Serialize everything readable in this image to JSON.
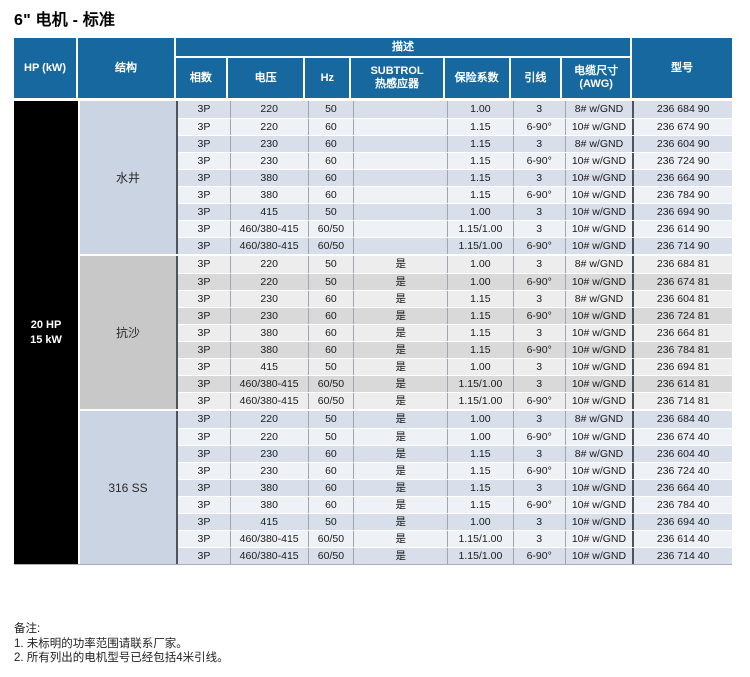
{
  "title": "6\" 电机 - 标准",
  "table": {
    "header": {
      "hp": "HP (kW)",
      "structure": "结构",
      "description": "描述",
      "sub": [
        "相数",
        "电压",
        "Hz",
        "SUBTROL\n热感应器",
        "保险系数",
        "引线",
        "电缆尺寸\n(AWG)"
      ],
      "model": "型号"
    },
    "hp_cell": {
      "line1": "20 HP",
      "line2": "15 kW"
    },
    "groups": [
      {
        "structure": "水井",
        "theme": "blue",
        "rows": [
          [
            "3P",
            "220",
            "50",
            "",
            "1.00",
            "3",
            "8# w/GND",
            "236 684 90"
          ],
          [
            "3P",
            "220",
            "60",
            "",
            "1.15",
            "6-90°",
            "10# w/GND",
            "236 674 90"
          ],
          [
            "3P",
            "230",
            "60",
            "",
            "1.15",
            "3",
            "8# w/GND",
            "236 604 90"
          ],
          [
            "3P",
            "230",
            "60",
            "",
            "1.15",
            "6-90°",
            "10# w/GND",
            "236 724 90"
          ],
          [
            "3P",
            "380",
            "60",
            "",
            "1.15",
            "3",
            "10# w/GND",
            "236 664 90"
          ],
          [
            "3P",
            "380",
            "60",
            "",
            "1.15",
            "6-90°",
            "10# w/GND",
            "236 784 90"
          ],
          [
            "3P",
            "415",
            "50",
            "",
            "1.00",
            "3",
            "10# w/GND",
            "236 694 90"
          ],
          [
            "3P",
            "460/380-415",
            "60/50",
            "",
            "1.15/1.00",
            "3",
            "10# w/GND",
            "236 614 90"
          ],
          [
            "3P",
            "460/380-415",
            "60/50",
            "",
            "1.15/1.00",
            "6-90°",
            "10# w/GND",
            "236 714 90"
          ]
        ]
      },
      {
        "structure": "抗沙",
        "theme": "gray",
        "rows": [
          [
            "3P",
            "220",
            "50",
            "是",
            "1.00",
            "3",
            "8# w/GND",
            "236 684 81"
          ],
          [
            "3P",
            "220",
            "50",
            "是",
            "1.00",
            "6-90°",
            "10# w/GND",
            "236 674 81"
          ],
          [
            "3P",
            "230",
            "60",
            "是",
            "1.15",
            "3",
            "8# w/GND",
            "236 604 81"
          ],
          [
            "3P",
            "230",
            "60",
            "是",
            "1.15",
            "6-90°",
            "10# w/GND",
            "236 724 81"
          ],
          [
            "3P",
            "380",
            "60",
            "是",
            "1.15",
            "3",
            "10# w/GND",
            "236 664 81"
          ],
          [
            "3P",
            "380",
            "60",
            "是",
            "1.15",
            "6-90°",
            "10# w/GND",
            "236 784 81"
          ],
          [
            "3P",
            "415",
            "50",
            "是",
            "1.00",
            "3",
            "10# w/GND",
            "236 694 81"
          ],
          [
            "3P",
            "460/380-415",
            "60/50",
            "是",
            "1.15/1.00",
            "3",
            "10# w/GND",
            "236 614 81"
          ],
          [
            "3P",
            "460/380-415",
            "60/50",
            "是",
            "1.15/1.00",
            "6-90°",
            "10# w/GND",
            "236 714 81"
          ]
        ]
      },
      {
        "structure": "316 SS",
        "theme": "blue",
        "rows": [
          [
            "3P",
            "220",
            "50",
            "是",
            "1.00",
            "3",
            "8# w/GND",
            "236 684 40"
          ],
          [
            "3P",
            "220",
            "50",
            "是",
            "1.00",
            "6-90°",
            "10# w/GND",
            "236 674 40"
          ],
          [
            "3P",
            "230",
            "60",
            "是",
            "1.15",
            "3",
            "8# w/GND",
            "236 604 40"
          ],
          [
            "3P",
            "230",
            "60",
            "是",
            "1.15",
            "6-90°",
            "10# w/GND",
            "236 724 40"
          ],
          [
            "3P",
            "380",
            "60",
            "是",
            "1.15",
            "3",
            "10# w/GND",
            "236 664 40"
          ],
          [
            "3P",
            "380",
            "60",
            "是",
            "1.15",
            "6-90°",
            "10# w/GND",
            "236 784 40"
          ],
          [
            "3P",
            "415",
            "50",
            "是",
            "1.00",
            "3",
            "10# w/GND",
            "236 694 40"
          ],
          [
            "3P",
            "460/380-415",
            "60/50",
            "是",
            "1.15/1.00",
            "3",
            "10# w/GND",
            "236 614 40"
          ],
          [
            "3P",
            "460/380-415",
            "60/50",
            "是",
            "1.15/1.00",
            "6-90°",
            "10# w/GND",
            "236 714 40"
          ]
        ]
      }
    ]
  },
  "notes": {
    "heading": "备注:",
    "items": [
      "1. 未标明的功率范围请联系厂家。",
      "2. 所有列出的电机型号已经包括4米引线。"
    ]
  },
  "colors": {
    "header_blue": "#17689e",
    "hp_cell_bg": "#000000",
    "blue_theme": {
      "struct": "#cbd4e2",
      "dark": "#d8dfeb",
      "light": "#eef1f6"
    },
    "gray_theme": {
      "struct": "#c8c8c8",
      "dark": "#d9d9d9",
      "light": "#ededed"
    }
  }
}
